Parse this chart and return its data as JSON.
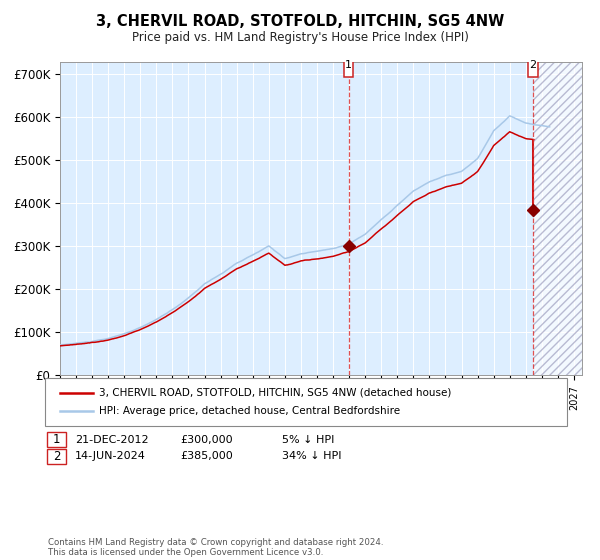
{
  "title": "3, CHERVIL ROAD, STOTFOLD, HITCHIN, SG5 4NW",
  "subtitle": "Price paid vs. HM Land Registry's House Price Index (HPI)",
  "xlim_start": 1995.0,
  "xlim_end": 2027.5,
  "ylim": [
    0,
    730000
  ],
  "yticks": [
    0,
    100000,
    200000,
    300000,
    400000,
    500000,
    600000,
    700000
  ],
  "ytick_labels": [
    "£0",
    "£100K",
    "£200K",
    "£300K",
    "£400K",
    "£500K",
    "£600K",
    "£700K"
  ],
  "hpi_color": "#a8c8e8",
  "price_color": "#cc0000",
  "marker_color": "#880000",
  "bg_color": "#ddeeff",
  "sale1_x": 2012.97,
  "sale1_y": 300000,
  "sale2_x": 2024.46,
  "sale2_y": 385000,
  "legend_house_label": "3, CHERVIL ROAD, STOTFOLD, HITCHIN, SG5 4NW (detached house)",
  "legend_hpi_label": "HPI: Average price, detached house, Central Bedfordshire",
  "note1_label": "1",
  "note1_date": "21-DEC-2012",
  "note1_price": "£300,000",
  "note1_hpi": "5% ↓ HPI",
  "note2_label": "2",
  "note2_date": "14-JUN-2024",
  "note2_price": "£385,000",
  "note2_hpi": "34% ↓ HPI",
  "copyright": "Contains HM Land Registry data © Crown copyright and database right 2024.\nThis data is licensed under the Open Government Licence v3.0."
}
